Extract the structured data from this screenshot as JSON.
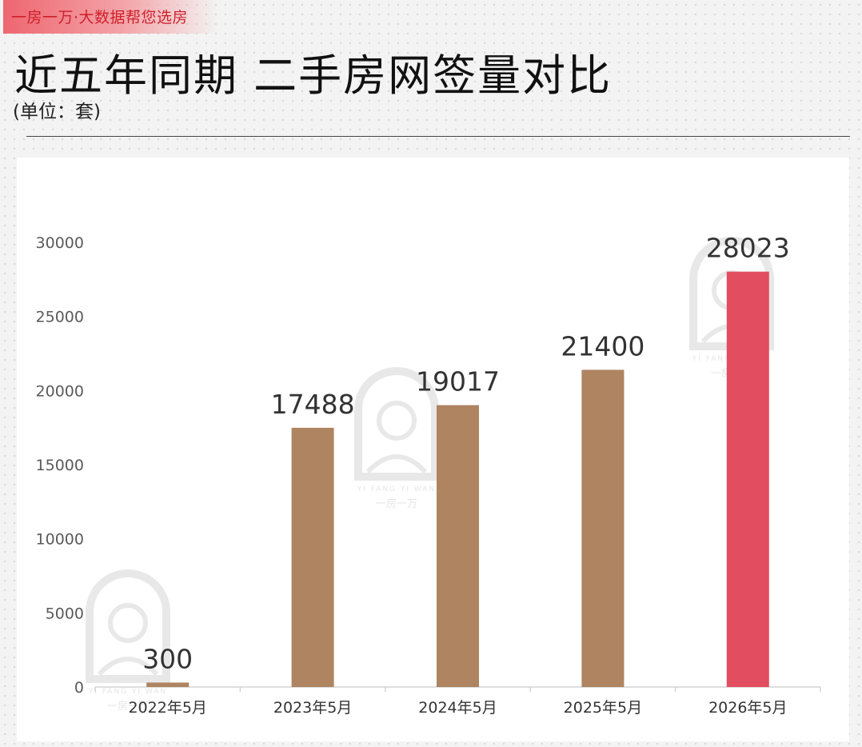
{
  "brand": {
    "tag": "一房一万·大数据帮您选房"
  },
  "header": {
    "title": "近五年同期  二手房网签量对比",
    "unit": "(单位：套)"
  },
  "watermark": {
    "text_en": "YI FANG YI WAN",
    "text_cn": "一房一万"
  },
  "chart_data": {
    "type": "bar",
    "categories": [
      "2022年5月",
      "2023年5月",
      "2024年5月",
      "2025年5月",
      "2026年5月"
    ],
    "values": [
      300,
      17488,
      19017,
      21400,
      28023
    ],
    "data_labels": [
      "300",
      "17488",
      "19017",
      "21400",
      "28023"
    ],
    "colors": [
      "#ae8461",
      "#ae8461",
      "#ae8461",
      "#ae8461",
      "#e24d5f"
    ],
    "yticks": [
      "0",
      "5000",
      "10000",
      "15000",
      "20000",
      "25000",
      "30000"
    ],
    "ylim": [
      0,
      30000
    ],
    "title": "",
    "xlabel": "",
    "ylabel": "",
    "grid": false,
    "legend": "none"
  }
}
